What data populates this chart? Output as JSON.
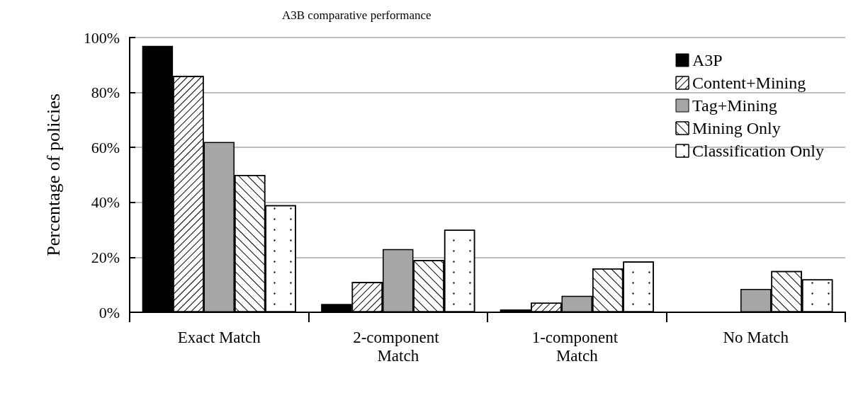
{
  "chart_data": {
    "type": "bar",
    "title": "A3B comparative performance",
    "ylabel": "Percentage of policies",
    "categories": [
      "Exact Match",
      "2-component Match",
      "1-component Match",
      "No Match"
    ],
    "series": [
      {
        "name": "A3P",
        "color": "#000000",
        "values": [
          97,
          3,
          1,
          0
        ]
      },
      {
        "name": "Content+Mining",
        "color": "#ffffff",
        "values": [
          86,
          11,
          3.5,
          0
        ]
      },
      {
        "name": "Tag+Mining",
        "color": "#a6a6a6",
        "values": [
          62,
          23,
          6,
          8.5
        ]
      },
      {
        "name": "Mining Only",
        "color": "#ffffff",
        "values": [
          50,
          19,
          16,
          15
        ]
      },
      {
        "name": "Classification Only",
        "color": "#ffffff",
        "values": [
          39,
          30,
          18.5,
          12
        ]
      }
    ],
    "ylim": [
      0,
      100
    ],
    "yticks": [
      {
        "value": 0,
        "label": "0%"
      },
      {
        "value": 20,
        "label": "20%"
      },
      {
        "value": 40,
        "label": "40%"
      },
      {
        "value": 60,
        "label": "60%"
      },
      {
        "value": 80,
        "label": "80%"
      },
      {
        "value": 100,
        "label": "100%"
      }
    ],
    "grid": "y",
    "legend": "top right"
  }
}
